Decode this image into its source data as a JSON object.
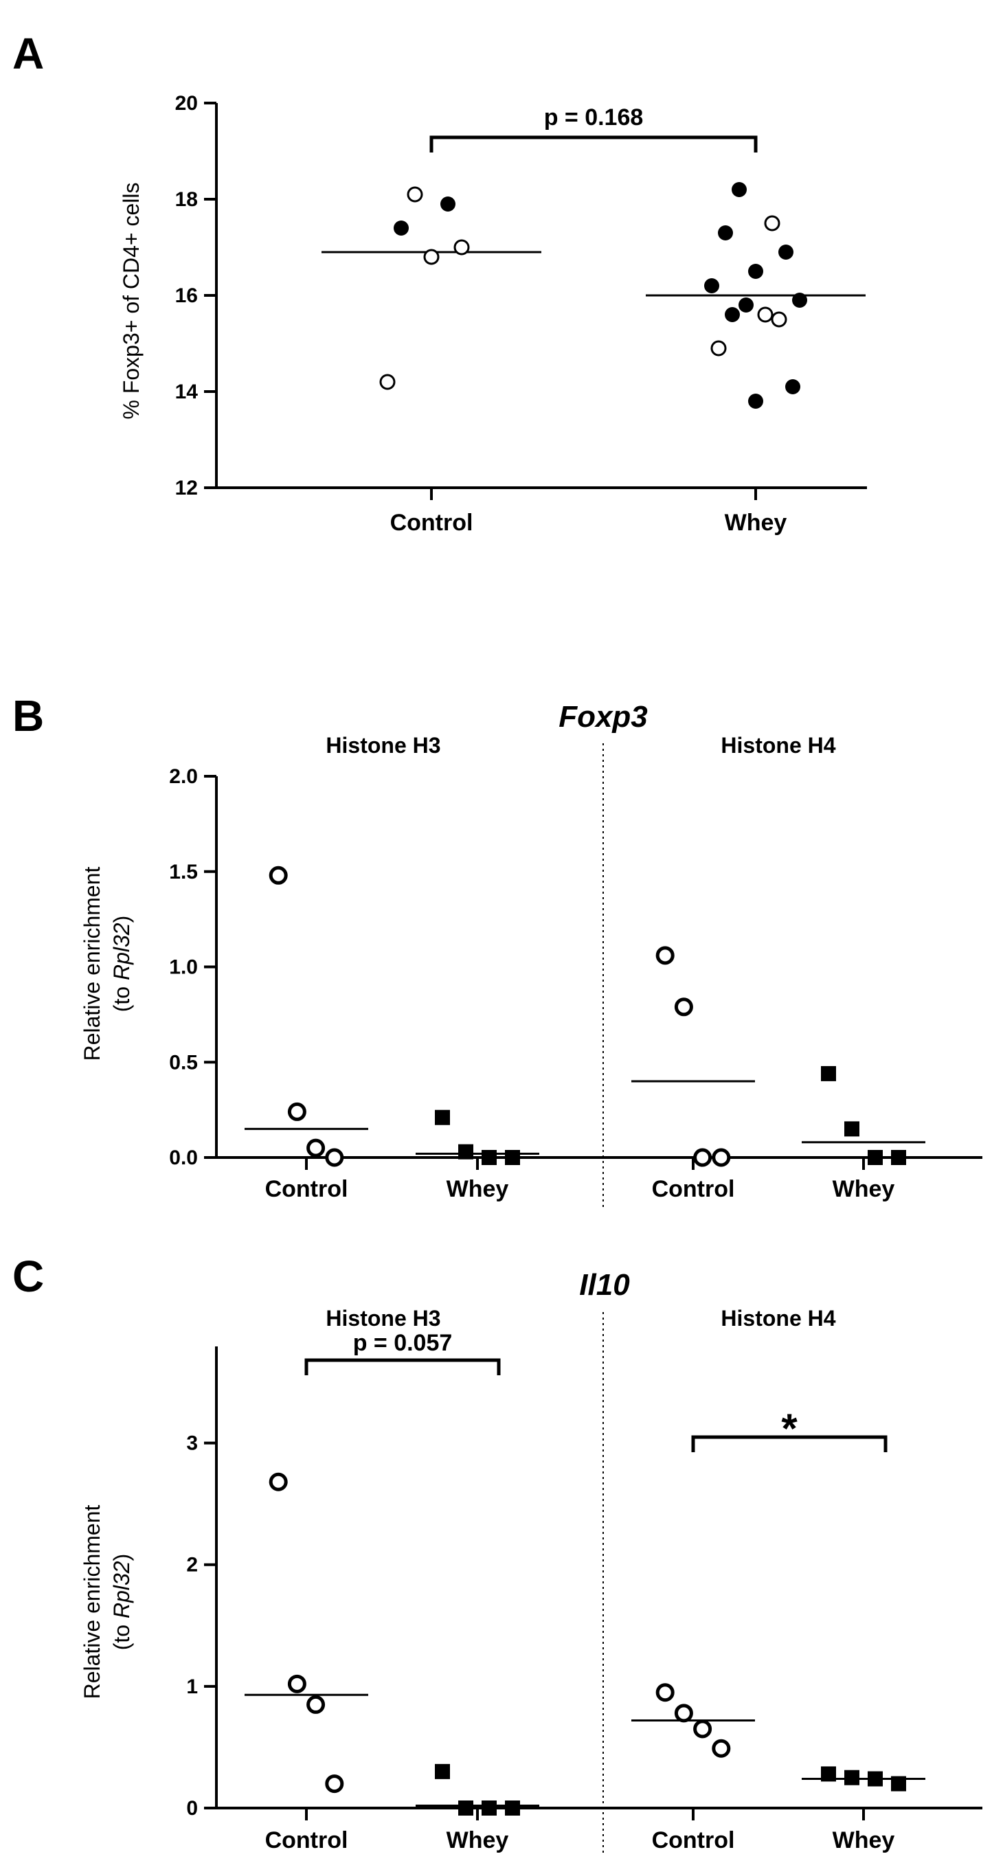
{
  "figure": {
    "panels": [
      "A",
      "B",
      "C"
    ]
  },
  "chart_data": [
    {
      "type": "scatter",
      "panel": "A",
      "ylabel": "% Foxp3+ of CD4+ cells",
      "ylim": [
        12,
        20
      ],
      "yticks": [
        "12",
        "14",
        "16",
        "18",
        "20"
      ],
      "categories": [
        "Control",
        "Whey"
      ],
      "annotation": "p = 0.168",
      "series": [
        {
          "category": "Control",
          "mean": 16.9,
          "open": [
            18.1,
            17.0,
            16.8,
            14.2
          ],
          "filled": [
            17.9,
            17.4
          ]
        },
        {
          "category": "Whey",
          "mean": 16.0,
          "open": [
            17.5,
            15.5,
            15.6,
            14.9
          ],
          "filled": [
            18.2,
            17.3,
            16.9,
            16.5,
            16.2,
            15.9,
            15.8,
            15.6,
            14.1,
            13.8
          ]
        }
      ]
    },
    {
      "type": "scatter",
      "panel": "B",
      "title": "Foxp3",
      "ylabel": "Relative enrichment (to Rpl32)",
      "ylim": [
        0,
        2.0
      ],
      "yticks": [
        "0.0",
        "0.5",
        "1.0",
        "1.5",
        "2.0"
      ],
      "groups": [
        "Histone  H3",
        "Histone  H4"
      ],
      "categories": [
        "Control",
        "Whey",
        "Control",
        "Whey"
      ],
      "series": [
        {
          "group": "Histone  H3",
          "category": "Control",
          "marker": "open-circle",
          "mean": 0.15,
          "values": [
            1.48,
            0.24,
            0.05,
            0.0
          ]
        },
        {
          "group": "Histone  H3",
          "category": "Whey",
          "marker": "filled-square",
          "mean": 0.02,
          "values": [
            0.21,
            0.03,
            0.0,
            0.0
          ]
        },
        {
          "group": "Histone  H4",
          "category": "Control",
          "marker": "open-circle",
          "mean": 0.4,
          "values": [
            1.06,
            0.79,
            0.0,
            0.0
          ]
        },
        {
          "group": "Histone  H4",
          "category": "Whey",
          "marker": "filled-square",
          "mean": 0.08,
          "values": [
            0.44,
            0.15,
            0.0,
            0.0
          ]
        }
      ]
    },
    {
      "type": "scatter",
      "panel": "C",
      "title": "Il10",
      "ylabel": "Relative enrichment (to Rpl32)",
      "ylim": [
        0,
        3.5
      ],
      "yticks": [
        "0",
        "1",
        "2",
        "3"
      ],
      "groups": [
        "Histone  H3",
        "Histone  H4"
      ],
      "categories": [
        "Control",
        "Whey",
        "Control",
        "Whey"
      ],
      "annotations": [
        "p = 0.057",
        "*"
      ],
      "series": [
        {
          "group": "Histone  H3",
          "category": "Control",
          "marker": "open-circle",
          "mean": 0.93,
          "values": [
            2.68,
            1.02,
            0.85,
            0.2
          ]
        },
        {
          "group": "Histone  H3",
          "category": "Whey",
          "marker": "filled-square",
          "mean": 0.02,
          "values": [
            0.3,
            0.0,
            0.0,
            0.0
          ]
        },
        {
          "group": "Histone  H4",
          "category": "Control",
          "marker": "open-circle",
          "mean": 0.72,
          "values": [
            0.95,
            0.78,
            0.65,
            0.49
          ]
        },
        {
          "group": "Histone  H4",
          "category": "Whey",
          "marker": "filled-square",
          "mean": 0.24,
          "values": [
            0.28,
            0.25,
            0.24,
            0.2
          ]
        }
      ]
    }
  ]
}
